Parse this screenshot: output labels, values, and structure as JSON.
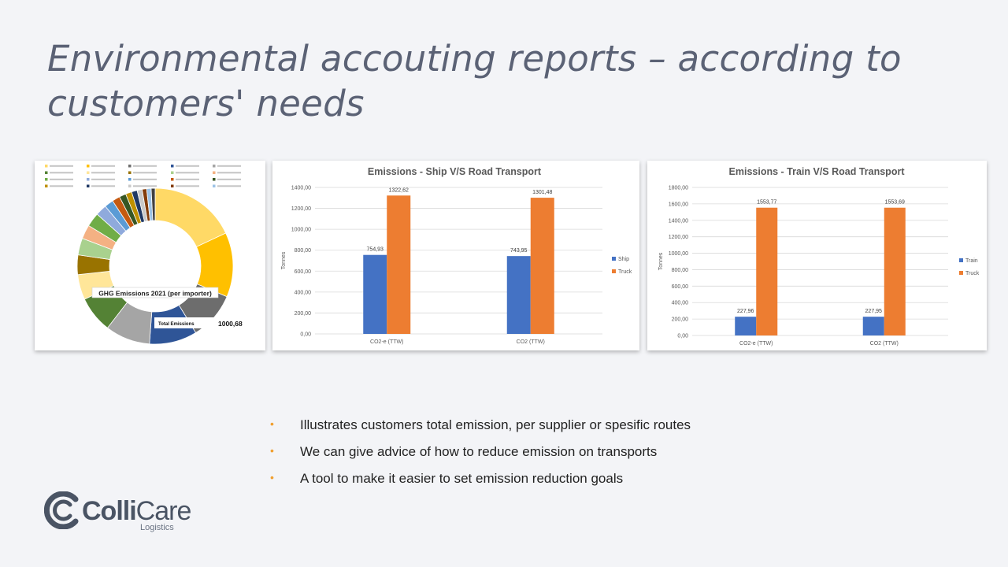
{
  "slide": {
    "title_line1": "Environmental accouting reports – according to",
    "title_line2": "customers' needs"
  },
  "bullets": [
    "Illustrates customers total emission, per supplier or spesific routes",
    "We can give advice of how to reduce emission on transports",
    "A tool to make it easier to set emission reduction goals"
  ],
  "logo": {
    "name_bold": "Colli",
    "name_light": "Care",
    "tagline": "Logistics"
  },
  "colors": {
    "ship": "#4472c4",
    "truck": "#ed7d31",
    "train": "#4472c4",
    "bullet": "#f0a030",
    "title": "#5b6275"
  },
  "chart_data": [
    {
      "type": "pie",
      "donut": true,
      "title": "GHG Emissions 2021 (per importer)",
      "total_label": "Total Emissions",
      "total_value": "1000,68",
      "slice_colors": [
        "#ffd966",
        "#ffc000",
        "#6d6d6d",
        "#2f5597",
        "#a5a5a5",
        "#548235",
        "#ffe699",
        "#997300",
        "#a9d18e",
        "#f4b183",
        "#70ad47",
        "#8faadc",
        "#5b9bd5",
        "#c55a11",
        "#375623",
        "#bf9000",
        "#1f3864",
        "#c9c9c9",
        "#833c0b",
        "#9dc3e6",
        "#404040"
      ],
      "values": [
        15.5,
        11.5,
        8.5,
        8.5,
        8,
        6.5,
        4.5,
        3.5,
        3,
        2.5,
        2.5,
        2,
        1.6,
        1.4,
        1.2,
        1.1,
        1,
        0.9,
        0.8,
        0.8,
        0.7
      ]
    },
    {
      "type": "bar",
      "title": "Emissions - Ship V/S Road Transport",
      "ylabel": "Tonnes",
      "xlabel": "",
      "categories": [
        "CO2-e (TTW)",
        "CO2 (TTW)"
      ],
      "series": [
        {
          "name": "Ship",
          "values": [
            754.93,
            743.95
          ],
          "labels": [
            "754,93",
            "743,95"
          ]
        },
        {
          "name": "Truck",
          "values": [
            1322.62,
            1301.48
          ],
          "labels": [
            "1322,62",
            "1301,48"
          ]
        }
      ],
      "yticks": [
        "0,00",
        "200,00",
        "400,00",
        "600,00",
        "800,00",
        "1000,00",
        "1200,00",
        "1400,00"
      ],
      "ylim": [
        0,
        1400
      ],
      "grid": true,
      "legend": "right"
    },
    {
      "type": "bar",
      "title": "Emissions - Train V/S Road Transport",
      "ylabel": "Tonnes",
      "xlabel": "",
      "categories": [
        "CO2-e (TTW)",
        "CO2 (TTW)"
      ],
      "series": [
        {
          "name": "Train",
          "values": [
            227.96,
            227.95
          ],
          "labels": [
            "227,96",
            "227,95"
          ]
        },
        {
          "name": "Truck",
          "values": [
            1553.77,
            1553.69
          ],
          "labels": [
            "1553,77",
            "1553,69"
          ]
        }
      ],
      "yticks": [
        "0,00",
        "200,00",
        "400,00",
        "600,00",
        "800,00",
        "1000,00",
        "1200,00",
        "1400,00",
        "1600,00",
        "1800,00"
      ],
      "ylim": [
        0,
        1800
      ],
      "grid": true,
      "legend": "right"
    }
  ]
}
